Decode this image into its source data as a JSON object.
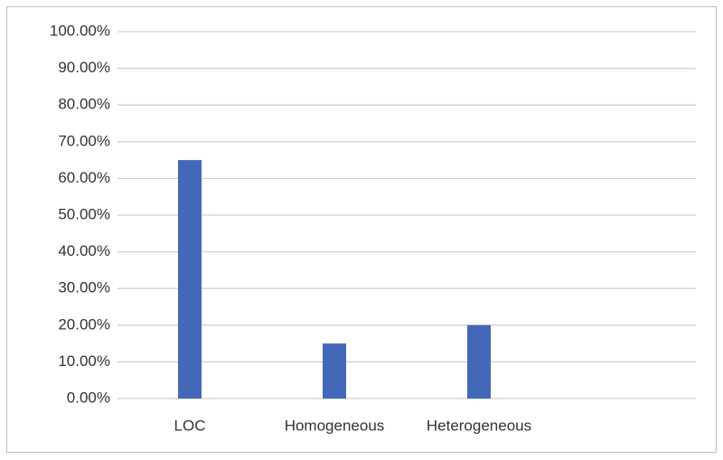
{
  "chart_data": {
    "type": "bar",
    "categories": [
      "LOC",
      "Homogeneous",
      "Heterogeneous",
      null
    ],
    "values": [
      65,
      15,
      20,
      null
    ],
    "color": "#4468b8",
    "ylim": [
      0,
      100
    ],
    "yticks": [
      {
        "value": 0,
        "label": "0.00%"
      },
      {
        "value": 10,
        "label": "10.00%"
      },
      {
        "value": 20,
        "label": "20.00%"
      },
      {
        "value": 30,
        "label": "30.00%"
      },
      {
        "value": 40,
        "label": "40.00%"
      },
      {
        "value": 50,
        "label": "50.00%"
      },
      {
        "value": 60,
        "label": "60.00%"
      },
      {
        "value": 70,
        "label": "70.00%"
      },
      {
        "value": 80,
        "label": "80.00%"
      },
      {
        "value": 90,
        "label": "90.00%"
      },
      {
        "value": 100,
        "label": "100.00%"
      }
    ],
    "grid": true
  }
}
